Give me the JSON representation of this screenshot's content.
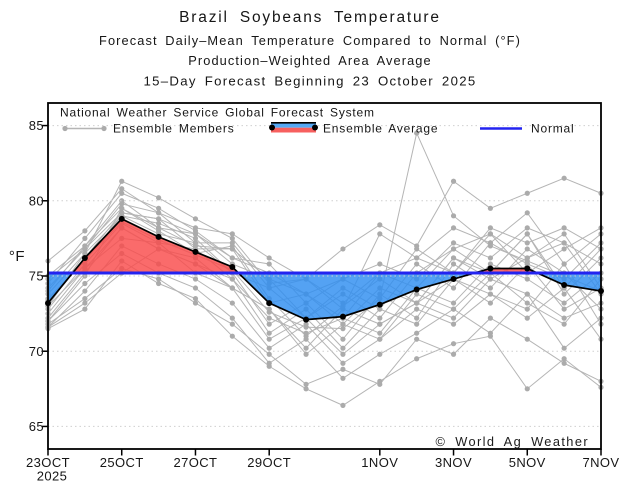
{
  "title": {
    "line1": "Brazil Soybeans Temperature",
    "line2": "Forecast Daily–Mean Temperature Compared to Normal (°F)",
    "line3": "Production–Weighted Area Average",
    "line4": "15–Day Forecast Beginning 23 October 2025"
  },
  "legend": {
    "header": "National Weather Service Global Forecast System",
    "members_label": "Ensemble Members",
    "average_label": "Ensemble Average",
    "normal_label": "Normal"
  },
  "watermark": "© World Ag Weather",
  "axes": {
    "y_unit": "°F",
    "y_ticks": [
      65,
      70,
      75,
      80,
      85
    ],
    "x_tick_days": [
      0,
      2,
      4,
      6,
      9,
      11,
      13,
      15
    ],
    "x_tick_labels": [
      "23OCT",
      "25OCT",
      "27OCT",
      "29OCT",
      "1NOV",
      "3NOV",
      "5NOV",
      "7NOV"
    ],
    "x_year_label": "2025"
  },
  "colors": {
    "ensemble_member": "#b5b5b5",
    "ensemble_member_dot": "#ababab",
    "ensemble_average": "#000000",
    "normal_line": "#2323f0",
    "above_normal_fill": "#f94b4b",
    "below_normal_fill": "#2e8ef0",
    "gridline": "#cfcfcf",
    "frame": "#000000"
  },
  "chart_data": {
    "type": "line",
    "title": "Brazil Soybeans Temperature — 15-Day Forecast Beginning 23 October 2025",
    "ylabel": "°F",
    "ylim": [
      63.5,
      86.5
    ],
    "grid": "dotted horizontal at 65,70,75,80,85",
    "legend_position": "top-left inside plot",
    "x_dates": [
      "23OCT",
      "24OCT",
      "25OCT",
      "26OCT",
      "27OCT",
      "28OCT",
      "29OCT",
      "30OCT",
      "31OCT",
      "1NOV",
      "2NOV",
      "3NOV",
      "4NOV",
      "5NOV",
      "6NOV",
      "7NOV"
    ],
    "normal": 75.2,
    "ensemble_average": [
      73.2,
      76.2,
      78.8,
      77.6,
      76.6,
      75.6,
      73.2,
      72.1,
      72.3,
      73.1,
      74.1,
      74.8,
      75.5,
      75.5,
      74.4,
      74.0
    ],
    "ensemble_members": [
      [
        72.0,
        75.0,
        79.5,
        78.0,
        76.5,
        77.0,
        73.5,
        71.0,
        73.0,
        74.8,
        73.2,
        76.2,
        75.2,
        77.8,
        73.8,
        76.2
      ],
      [
        74.5,
        77.5,
        80.5,
        79.5,
        78.0,
        76.2,
        75.8,
        73.2,
        74.8,
        73.5,
        76.8,
        75.2,
        77.8,
        76.2,
        77.8,
        74.2
      ],
      [
        73.0,
        76.5,
        81.3,
        80.2,
        78.8,
        77.5,
        74.5,
        74.8,
        72.8,
        77.8,
        76.2,
        78.2,
        77.2,
        79.2,
        75.8,
        77.8
      ],
      [
        71.6,
        74.0,
        77.0,
        75.8,
        74.8,
        73.2,
        70.2,
        71.8,
        69.2,
        70.8,
        72.8,
        71.8,
        73.8,
        72.2,
        74.2,
        70.8
      ],
      [
        72.5,
        75.5,
        78.2,
        76.8,
        75.8,
        74.2,
        72.8,
        69.8,
        71.8,
        70.8,
        73.8,
        72.8,
        75.2,
        73.2,
        71.8,
        74.8
      ],
      [
        73.5,
        76.0,
        79.0,
        78.5,
        77.5,
        75.2,
        71.8,
        73.2,
        70.8,
        73.8,
        72.2,
        75.8,
        74.2,
        76.8,
        75.2,
        72.8
      ],
      [
        74.0,
        77.0,
        80.0,
        78.2,
        77.0,
        76.8,
        74.8,
        72.2,
        74.2,
        72.8,
        75.8,
        74.2,
        77.2,
        75.8,
        74.8,
        77.2
      ],
      [
        72.0,
        74.5,
        76.5,
        75.2,
        74.2,
        72.2,
        69.2,
        70.8,
        68.2,
        69.8,
        71.2,
        72.8,
        71.2,
        73.8,
        70.2,
        72.2
      ],
      [
        71.8,
        73.5,
        75.5,
        74.8,
        73.2,
        71.8,
        69.8,
        67.8,
        68.8,
        67.8,
        70.8,
        69.8,
        72.2,
        70.8,
        69.2,
        68.0
      ],
      [
        75.0,
        77.0,
        79.5,
        78.2,
        77.8,
        76.2,
        75.2,
        73.8,
        74.8,
        75.8,
        74.8,
        77.2,
        76.2,
        78.2,
        77.2,
        75.8
      ],
      [
        76.0,
        78.0,
        80.8,
        79.2,
        78.2,
        77.8,
        76.2,
        74.8,
        76.8,
        78.4,
        77.0,
        81.3,
        79.5,
        80.5,
        81.5,
        80.5
      ],
      [
        72.8,
        75.8,
        78.5,
        77.2,
        76.8,
        74.8,
        72.2,
        71.2,
        72.2,
        71.2,
        74.2,
        73.2,
        75.8,
        74.8,
        73.2,
        75.2
      ],
      [
        73.2,
        76.2,
        79.2,
        78.8,
        76.8,
        76.8,
        73.2,
        73.8,
        71.8,
        74.2,
        73.2,
        76.2,
        74.8,
        76.2,
        77.2,
        73.8
      ],
      [
        72.2,
        75.2,
        78.2,
        76.8,
        76.2,
        74.2,
        72.8,
        70.2,
        72.8,
        71.8,
        73.2,
        74.8,
        73.2,
        75.8,
        72.8,
        74.2
      ],
      [
        74.8,
        76.8,
        79.8,
        79.2,
        77.2,
        77.2,
        74.2,
        74.8,
        73.2,
        75.2,
        76.2,
        75.2,
        78.2,
        77.2,
        78.2,
        76.8
      ],
      [
        71.5,
        72.8,
        76.0,
        74.5,
        73.5,
        71.0,
        69.0,
        67.5,
        66.4,
        68.0,
        69.5,
        70.5,
        71.0,
        67.5,
        69.5,
        67.6
      ],
      [
        73.8,
        76.5,
        79.0,
        77.8,
        77.2,
        75.2,
        74.2,
        72.2,
        73.8,
        72.2,
        75.2,
        76.8,
        75.2,
        77.8,
        74.2,
        76.8
      ],
      [
        71.6,
        73.2,
        75.2,
        76.8,
        75.8,
        74.8,
        71.2,
        72.8,
        70.2,
        72.8,
        71.8,
        74.8,
        73.8,
        72.8,
        75.8,
        71.8
      ],
      [
        74.2,
        76.8,
        79.2,
        78.8,
        77.8,
        75.8,
        74.8,
        73.8,
        72.2,
        75.2,
        74.2,
        76.8,
        77.8,
        75.2,
        76.8,
        78.2
      ],
      [
        73.0,
        75.5,
        77.5,
        77.2,
        75.2,
        74.2,
        70.8,
        72.2,
        69.8,
        71.8,
        73.2,
        72.2,
        74.8,
        73.8,
        72.2,
        73.2
      ],
      [
        73.4,
        76.1,
        78.6,
        77.4,
        76.4,
        75.4,
        72.6,
        71.6,
        71.5,
        73.5,
        84.5,
        79.0,
        77.0,
        76.0,
        75.0,
        74.0
      ]
    ]
  }
}
